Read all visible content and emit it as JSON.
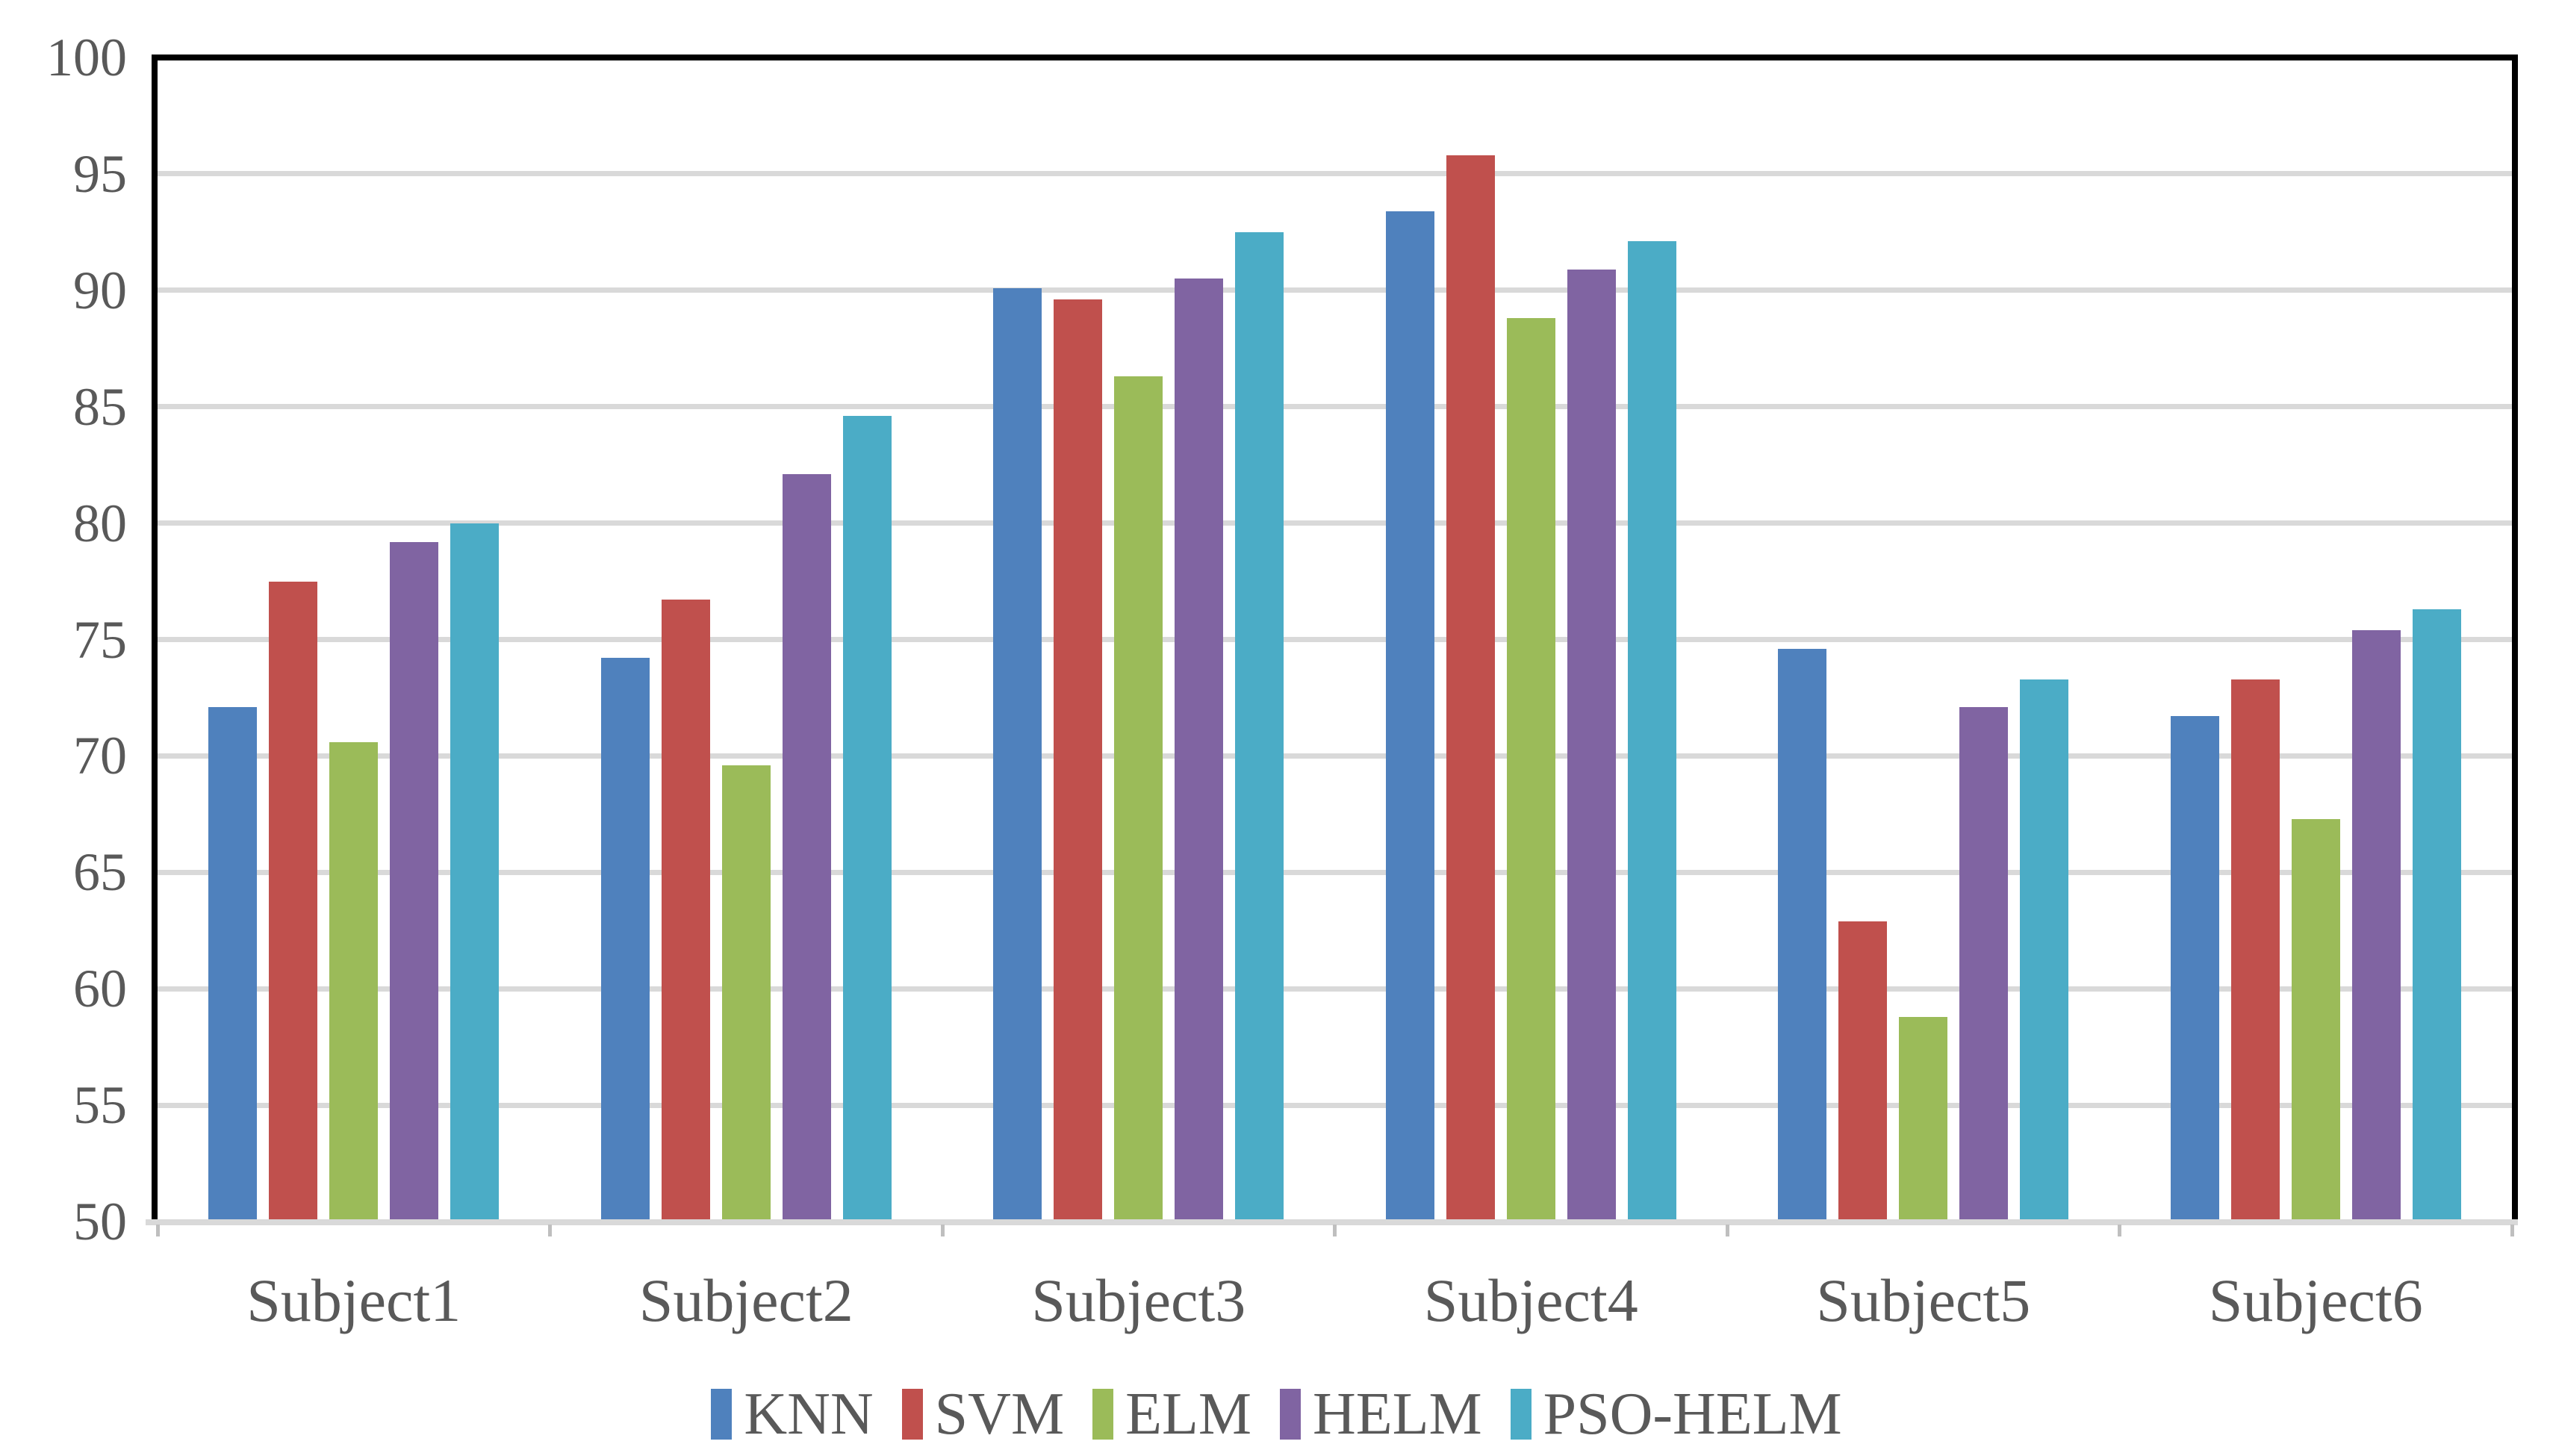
{
  "chart_data": {
    "type": "bar",
    "title": "",
    "xlabel": "",
    "ylabel": "",
    "categories": [
      "Subject1",
      "Subject2",
      "Subject3",
      "Subject4",
      "Subject5",
      "Subject6"
    ],
    "series": [
      {
        "name": "KNN",
        "color": "#4F81BD",
        "values": [
          72.1,
          74.2,
          90.1,
          93.4,
          74.6,
          71.7
        ]
      },
      {
        "name": "SVM",
        "color": "#C0504D",
        "values": [
          77.5,
          76.7,
          89.6,
          95.8,
          62.9,
          73.3
        ]
      },
      {
        "name": "ELM",
        "color": "#9BBB59",
        "values": [
          70.6,
          69.6,
          86.3,
          88.8,
          58.8,
          67.3
        ]
      },
      {
        "name": "HELM",
        "color": "#8064A2",
        "values": [
          79.2,
          82.1,
          90.5,
          90.9,
          72.1,
          75.4
        ]
      },
      {
        "name": "PSO-HELM",
        "color": "#4BACC6",
        "values": [
          80.0,
          84.6,
          92.5,
          92.1,
          73.3,
          76.3
        ]
      }
    ],
    "ylim": [
      50,
      100
    ],
    "ytick_step": 5,
    "ytick_labels": [
      "100",
      "95",
      "90",
      "85",
      "80",
      "75",
      "70",
      "65",
      "60",
      "55",
      "50"
    ],
    "grid": "horizontal",
    "legend_position": "bottom",
    "colors": {
      "axis_text": "#595959",
      "gridline": "#D9D9D9",
      "plot_border": "#000000",
      "background": "#FFFFFF"
    }
  }
}
